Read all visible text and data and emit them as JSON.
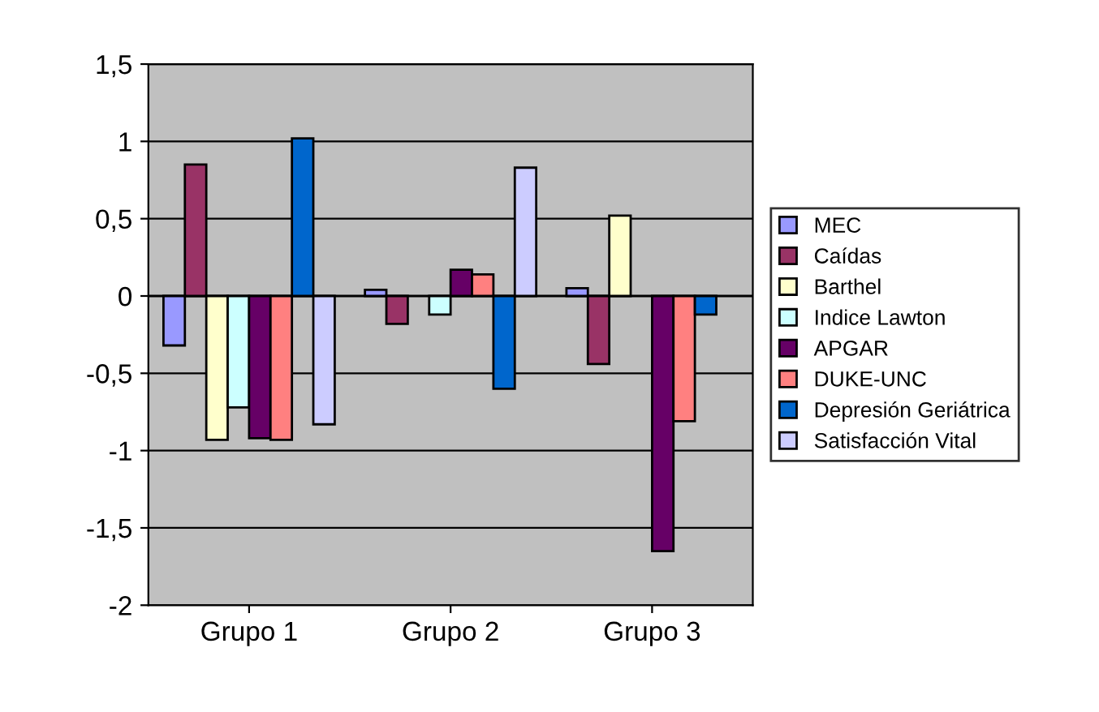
{
  "chart_data": {
    "type": "bar",
    "categories": [
      "Grupo 1",
      "Grupo 2",
      "Grupo 3"
    ],
    "series": [
      {
        "name": "MEC",
        "color": "#9999ff",
        "values": [
          -0.32,
          0.04,
          0.05
        ]
      },
      {
        "name": "Caídas",
        "color": "#993366",
        "values": [
          0.85,
          -0.18,
          -0.44
        ]
      },
      {
        "name": "Barthel",
        "color": "#ffffcc",
        "values": [
          -0.93,
          null,
          0.52
        ]
      },
      {
        "name": "Indice Lawton",
        "color": "#ccffff",
        "values": [
          -0.72,
          -0.12,
          null
        ]
      },
      {
        "name": "APGAR",
        "color": "#660066",
        "values": [
          -0.92,
          0.17,
          -1.65
        ]
      },
      {
        "name": "DUKE-UNC",
        "color": "#ff8080",
        "values": [
          -0.93,
          0.14,
          -0.81
        ]
      },
      {
        "name": "Depresión Geriátrica",
        "color": "#0066cc",
        "values": [
          1.02,
          -0.6,
          -0.12
        ]
      },
      {
        "name": "Satisfacción Vital",
        "color": "#ccccff",
        "values": [
          -0.83,
          0.83,
          null
        ]
      }
    ],
    "ylim": [
      -2,
      1.5
    ],
    "yticks": [
      -2,
      {
        "value": -1.5,
        "label": "-1,5"
      },
      -1,
      {
        "value": -0.5,
        "label": "-0,5"
      },
      0,
      {
        "value": 0.5,
        "label": "0,5"
      },
      1,
      {
        "value": 1.5,
        "label": "1,5"
      }
    ],
    "grid": "y",
    "legend": "right"
  }
}
